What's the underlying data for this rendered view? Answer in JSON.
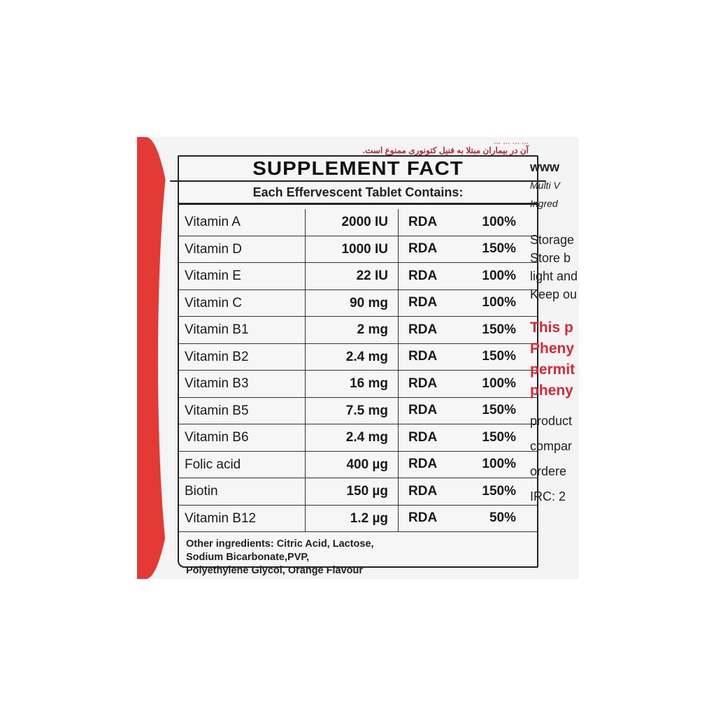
{
  "persian_warning": [
    "... ... ... ...",
    "آن در بیماران مبتلا به فنیل کتونوری ممنوع است."
  ],
  "title": "SUPPLEMENT FACT",
  "subtitle": "Each Effervescent Tablet Contains:",
  "rows": [
    {
      "name": "Vitamin A",
      "amount": "2000 IU",
      "rda": "RDA",
      "pct": "100%"
    },
    {
      "name": "Vitamin D",
      "amount": "1000 IU",
      "rda": "RDA",
      "pct": "150%"
    },
    {
      "name": "Vitamin E",
      "amount": "22 IU",
      "rda": "RDA",
      "pct": "100%"
    },
    {
      "name": "Vitamin C",
      "amount": "90 mg",
      "rda": "RDA",
      "pct": "100%"
    },
    {
      "name": "Vitamin B1",
      "amount": "2 mg",
      "rda": "RDA",
      "pct": "150%"
    },
    {
      "name": "Vitamin B2",
      "amount": "2.4 mg",
      "rda": "RDA",
      "pct": "150%"
    },
    {
      "name": "Vitamin B3",
      "amount": "16 mg",
      "rda": "RDA",
      "pct": "100%"
    },
    {
      "name": "Vitamin B5",
      "amount": "7.5 mg",
      "rda": "RDA",
      "pct": "150%"
    },
    {
      "name": "Vitamin B6",
      "amount": "2.4 mg",
      "rda": "RDA",
      "pct": "150%"
    },
    {
      "name": "Folic acid",
      "amount": "400 µg",
      "rda": "RDA",
      "pct": "100%"
    },
    {
      "name": "Biotin",
      "amount": "150 µg",
      "rda": "RDA",
      "pct": "150%"
    },
    {
      "name": "Vitamin B12",
      "amount": "1.2 µg",
      "rda": "RDA",
      "pct": "50%"
    }
  ],
  "other_ingredients": [
    "Other ingredients: Citric Acid, Lactose,",
    "Sodium Bicarbonate,PVP,",
    "Polyethylene  Glycol, Orange Flavour"
  ],
  "side_text": {
    "web": "www",
    "multi": "Multi V",
    "ingred": "Ingred",
    "storage": [
      "Storage",
      "Store b",
      "light and",
      "Keep ou"
    ],
    "warning": [
      "This p",
      "Pheny",
      "permit",
      "pheny"
    ],
    "lower": [
      "product",
      "compar",
      "ordere",
      "IRC: 2"
    ]
  },
  "colors": {
    "red": "#e43a36",
    "warning_red": "#d42a35"
  }
}
